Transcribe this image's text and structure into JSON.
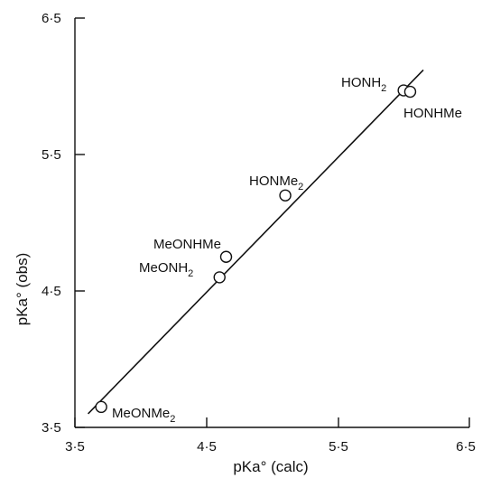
{
  "chart_data": {
    "type": "scatter",
    "title": "",
    "xlabel": "pKa° (calc)",
    "ylabel": "pKa° (obs)",
    "xlim": [
      3.5,
      6.5
    ],
    "ylim": [
      3.5,
      6.5
    ],
    "x_ticks": [
      "3·5",
      "4·5",
      "5·5",
      "6·5"
    ],
    "y_ticks": [
      "3·5",
      "4·5",
      "5·5",
      "6·5"
    ],
    "grid": false,
    "points": [
      {
        "label": "HONH2",
        "x": 6.0,
        "y": 5.97
      },
      {
        "label": "HONHMe",
        "x": 6.05,
        "y": 5.96
      },
      {
        "label": "HONMe2",
        "x": 5.1,
        "y": 5.2
      },
      {
        "label": "MeONHMe",
        "x": 4.65,
        "y": 4.75
      },
      {
        "label": "MeONH2",
        "x": 4.6,
        "y": 4.6
      },
      {
        "label": "MeONMe2",
        "x": 3.7,
        "y": 3.65
      }
    ],
    "fit_line": {
      "x": [
        3.6,
        6.15
      ],
      "y": [
        3.6,
        6.12
      ]
    }
  }
}
